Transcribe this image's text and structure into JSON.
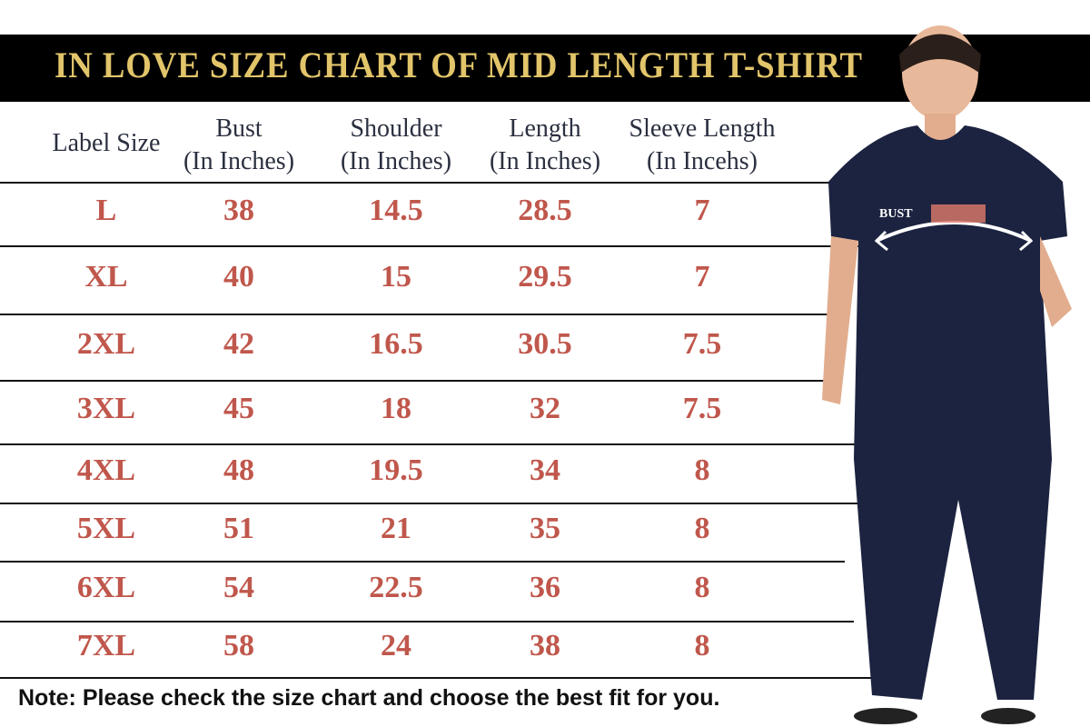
{
  "title": "IN LOVE SIZE CHART OF MID LENGTH T-SHIRT",
  "headers": [
    {
      "line1": "Label Size",
      "line2": ""
    },
    {
      "line1": "Bust",
      "line2": "(In Inches)"
    },
    {
      "line1": "Shoulder",
      "line2": "(In Inches)"
    },
    {
      "line1": "Length",
      "line2": "(In Inches)"
    },
    {
      "line1": "Sleeve Length",
      "line2": "(In Incehs)"
    }
  ],
  "rows": [
    [
      "L",
      "38",
      "14.5",
      "28.5",
      "7"
    ],
    [
      "XL",
      "40",
      "15",
      "29.5",
      "7"
    ],
    [
      "2XL",
      "42",
      "16.5",
      "30.5",
      "7.5"
    ],
    [
      "3XL",
      "45",
      "18",
      "32",
      "7.5"
    ],
    [
      "4XL",
      "48",
      "19.5",
      "34",
      "8"
    ],
    [
      "5XL",
      "51",
      "21",
      "35",
      "8"
    ],
    [
      "6XL",
      "54",
      "22.5",
      "36",
      "8"
    ],
    [
      "7XL",
      "58",
      "24",
      "38",
      "8"
    ]
  ],
  "bust_label": "BUST",
  "note": "Note: Please check the size chart and choose the best fit for you.",
  "colors": {
    "title": "#e2c56a",
    "values": "#c0574c",
    "garment": "#1c2340"
  }
}
